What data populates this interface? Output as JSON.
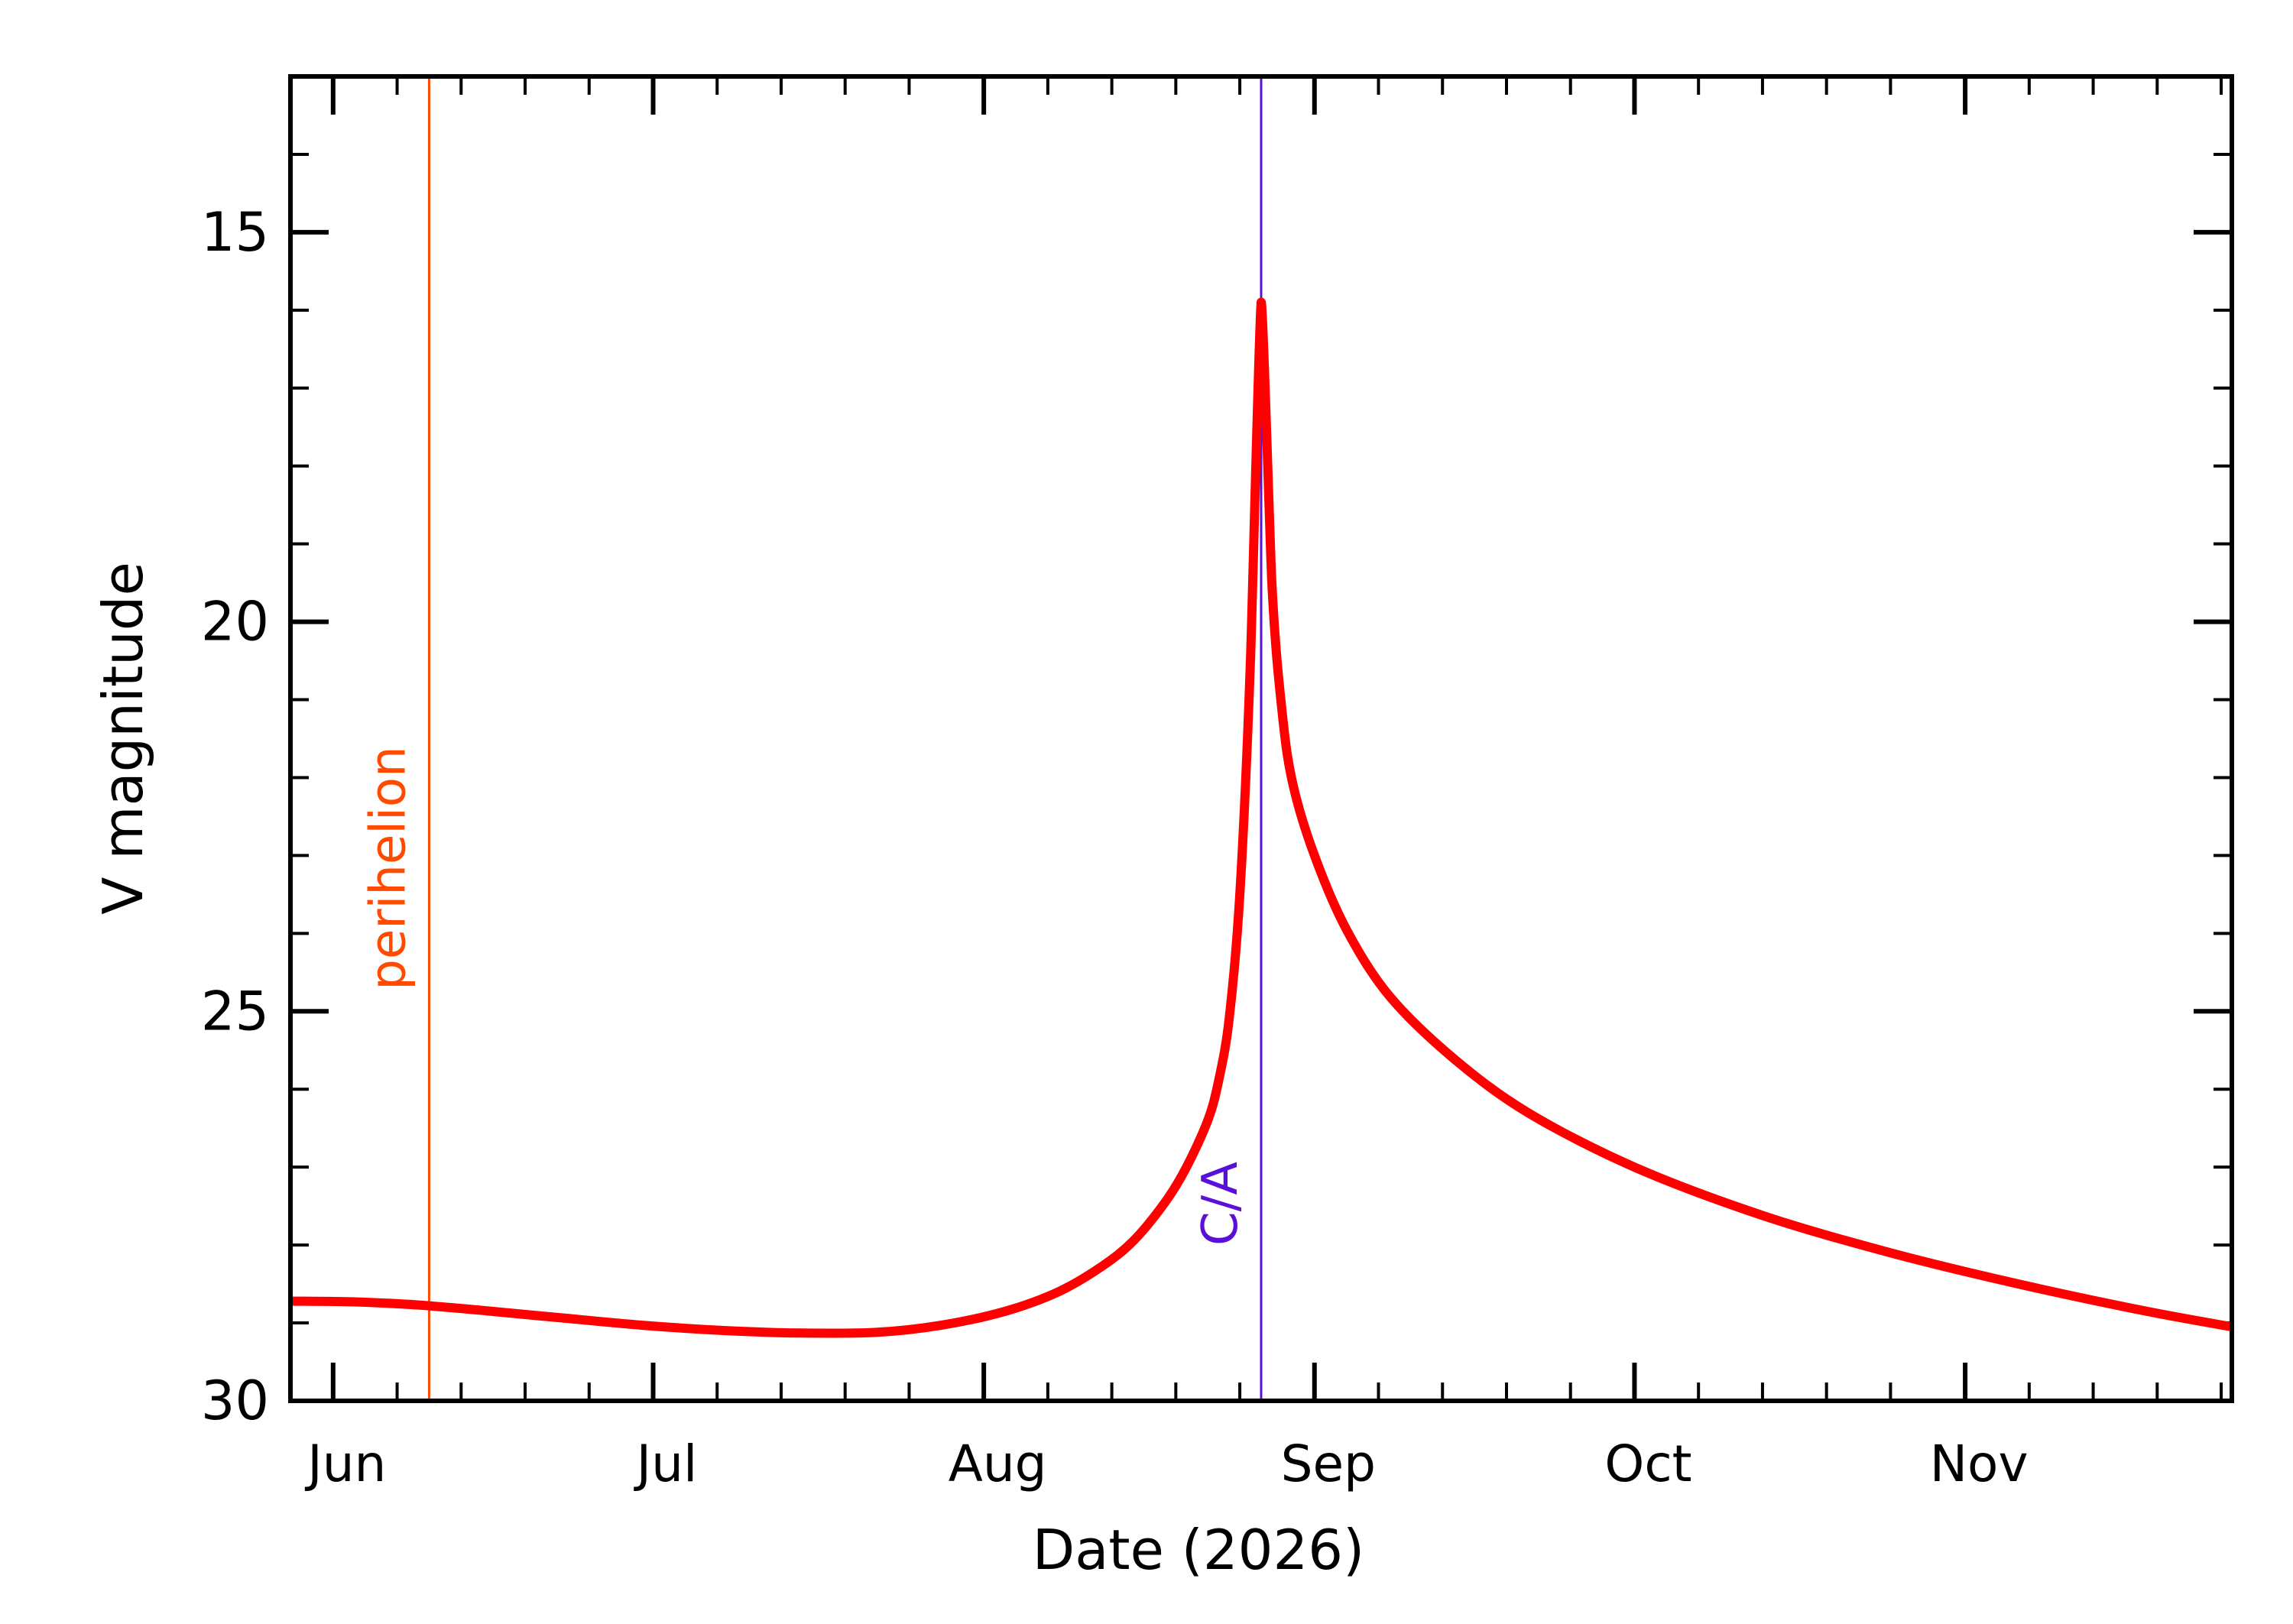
{
  "chart_data": {
    "type": "line",
    "xlabel": "Date (2026)",
    "ylabel": "V magnitude",
    "x_range": [
      "2026-05-28",
      "2026-11-26"
    ],
    "ylim": [
      30,
      13
    ],
    "y_inverted": true,
    "x_ticks": [
      {
        "date": "2026-06-01",
        "label": "Jun"
      },
      {
        "date": "2026-07-01",
        "label": "Jul"
      },
      {
        "date": "2026-08-01",
        "label": "Aug"
      },
      {
        "date": "2026-09-01",
        "label": "Sep"
      },
      {
        "date": "2026-10-01",
        "label": "Oct"
      },
      {
        "date": "2026-11-01",
        "label": "Nov"
      }
    ],
    "y_ticks": [
      15,
      20,
      25,
      30
    ],
    "y_minor_step": 1,
    "series": [
      {
        "color": "#ff0000",
        "points": [
          [
            "2026-05-28",
            28.72
          ],
          [
            "2026-06-03",
            28.73
          ],
          [
            "2026-06-09",
            28.77
          ],
          [
            "2026-06-15",
            28.84
          ],
          [
            "2026-06-22",
            28.93
          ],
          [
            "2026-06-30",
            29.03
          ],
          [
            "2026-07-08",
            29.1
          ],
          [
            "2026-07-15",
            29.13
          ],
          [
            "2026-07-22",
            29.12
          ],
          [
            "2026-07-28",
            29.03
          ],
          [
            "2026-08-03",
            28.85
          ],
          [
            "2026-08-08",
            28.6
          ],
          [
            "2026-08-12",
            28.28
          ],
          [
            "2026-08-15",
            27.95
          ],
          [
            "2026-08-18",
            27.45
          ],
          [
            "2026-08-20",
            27.0
          ],
          [
            "2026-08-22",
            26.4
          ],
          [
            "2026-08-23",
            25.9
          ],
          [
            "2026-08-24",
            25.1
          ],
          [
            "2026-08-25",
            23.5
          ],
          [
            "2026-08-26",
            20.5
          ],
          [
            "2026-08-27",
            15.9
          ],
          [
            "2026-08-28",
            19.5
          ],
          [
            "2026-08-29",
            21.2
          ],
          [
            "2026-08-30",
            22.1
          ],
          [
            "2026-09-01",
            23.0
          ],
          [
            "2026-09-04",
            23.95
          ],
          [
            "2026-09-08",
            24.8
          ],
          [
            "2026-09-14",
            25.6
          ],
          [
            "2026-09-21",
            26.3
          ],
          [
            "2026-10-01",
            27.0
          ],
          [
            "2026-10-13",
            27.62
          ],
          [
            "2026-10-25",
            28.1
          ],
          [
            "2026-11-06",
            28.5
          ],
          [
            "2026-11-18",
            28.85
          ],
          [
            "2026-11-26",
            29.05
          ]
        ]
      }
    ],
    "markers": [
      {
        "label": "perihelion",
        "date": "2026-06-10",
        "color": "#ff4a00"
      },
      {
        "label": "C/A",
        "date": "2026-08-27",
        "color": "#5a10d8"
      }
    ]
  }
}
